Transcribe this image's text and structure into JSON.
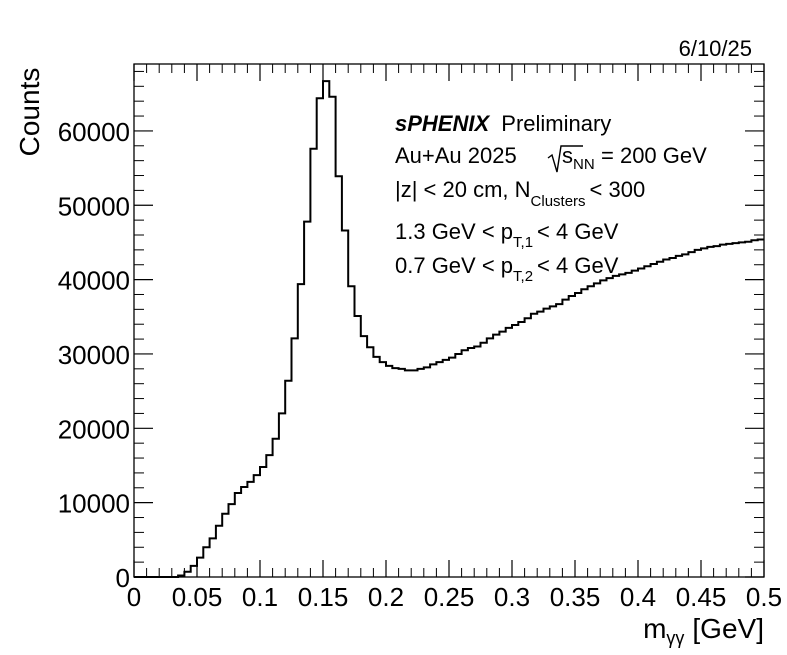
{
  "date_label": "6/10/25",
  "annotations": {
    "brand": "sPHENIX",
    "status": "Preliminary",
    "system": "Au+Au 2025",
    "sqrt_prefix": "s",
    "sqrt_sub": "NN",
    "energy": "= 200 GeV",
    "line3_main": "|z| < 20 cm, N",
    "line3_sub": "Clusters",
    "line3_tail": "< 300",
    "line4_main": "1.3 GeV < p",
    "line4_sub": "T,1",
    "line4_tail": "< 4 GeV",
    "line5_main": "0.7 GeV < p",
    "line5_sub": "T,2",
    "line5_tail": "< 4 GeV"
  },
  "chart_data": {
    "type": "histogram",
    "xlabel_main": "m",
    "xlabel_sub": "γγ",
    "xlabel_unit": "[GeV]",
    "ylabel": "Counts",
    "xlim": [
      0,
      0.5
    ],
    "ylim": [
      0,
      69000
    ],
    "x_ticks": [
      0,
      0.05,
      0.1,
      0.15,
      0.2,
      0.25,
      0.3,
      0.35,
      0.4,
      0.45,
      0.5
    ],
    "x_tick_labels": [
      "0",
      "0.05",
      "0.1",
      "0.15",
      "0.2",
      "0.25",
      "0.3",
      "0.35",
      "0.4",
      "0.45",
      "0.5"
    ],
    "y_ticks": [
      0,
      10000,
      20000,
      30000,
      40000,
      50000,
      60000
    ],
    "y_tick_labels": [
      "0",
      "10000",
      "20000",
      "30000",
      "40000",
      "50000",
      "60000"
    ],
    "bin_width": 0.005,
    "bin_centers": [
      0.0025,
      0.0075,
      0.0125,
      0.0175,
      0.0225,
      0.0275,
      0.0325,
      0.0375,
      0.0425,
      0.0475,
      0.0525,
      0.0575,
      0.0625,
      0.0675,
      0.0725,
      0.0775,
      0.0825,
      0.0875,
      0.0925,
      0.0975,
      0.1025,
      0.1075,
      0.1125,
      0.1175,
      0.1225,
      0.1275,
      0.1325,
      0.1375,
      0.1425,
      0.1475,
      0.1525,
      0.1575,
      0.1625,
      0.1675,
      0.1725,
      0.1775,
      0.1825,
      0.1875,
      0.1925,
      0.1975,
      0.2025,
      0.2075,
      0.2125,
      0.2175,
      0.2225,
      0.2275,
      0.2325,
      0.2375,
      0.2425,
      0.2475,
      0.2525,
      0.2575,
      0.2625,
      0.2675,
      0.2725,
      0.2775,
      0.2825,
      0.2875,
      0.2925,
      0.2975,
      0.3025,
      0.3075,
      0.3125,
      0.3175,
      0.3225,
      0.3275,
      0.3325,
      0.3375,
      0.3425,
      0.3475,
      0.3525,
      0.3575,
      0.3625,
      0.3675,
      0.3725,
      0.3775,
      0.3825,
      0.3875,
      0.3925,
      0.3975,
      0.4025,
      0.4075,
      0.4125,
      0.4175,
      0.4225,
      0.4275,
      0.4325,
      0.4375,
      0.4425,
      0.4475,
      0.4525,
      0.4575,
      0.4625,
      0.4675,
      0.4725,
      0.4775,
      0.4825,
      0.4875,
      0.4925,
      0.4975
    ],
    "counts": [
      0,
      0,
      0,
      0,
      0,
      0,
      0,
      200,
      700,
      1500,
      2600,
      4000,
      5200,
      6900,
      8500,
      9800,
      11300,
      12100,
      12800,
      13700,
      14800,
      16400,
      18600,
      22000,
      26400,
      32100,
      39400,
      47800,
      57600,
      64400,
      66700,
      64600,
      53900,
      46600,
      39100,
      35100,
      32400,
      30900,
      29600,
      28900,
      28400,
      28100,
      28000,
      27800,
      27800,
      28000,
      28200,
      28600,
      28900,
      29200,
      29500,
      30000,
      30500,
      30800,
      31000,
      31500,
      32100,
      32600,
      33000,
      33500,
      33900,
      34300,
      34800,
      35400,
      35700,
      36100,
      36400,
      36700,
      37300,
      37800,
      38200,
      38700,
      39100,
      39500,
      39900,
      40200,
      40500,
      40700,
      40900,
      41200,
      41500,
      41800,
      42100,
      42400,
      42700,
      42900,
      43200,
      43400,
      43700,
      44000,
      44200,
      44400,
      44500,
      44700,
      44800,
      44900,
      45000,
      45100,
      45300,
      45400
    ]
  }
}
